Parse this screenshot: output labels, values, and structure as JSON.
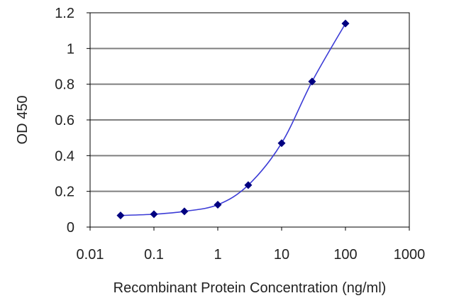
{
  "chart_data": {
    "type": "line",
    "xlabel": "Recombinant Protein Concentration (ng/ml)",
    "ylabel": "OD 450",
    "xscale": "log",
    "xlim": [
      0.01,
      1000
    ],
    "ylim": [
      0,
      1.2
    ],
    "xticks": [
      0.01,
      0.1,
      1,
      10,
      100,
      1000
    ],
    "xtick_labels": [
      "0.01",
      "0.1",
      "1",
      "10",
      "100",
      "1000"
    ],
    "yticks": [
      0,
      0.2,
      0.4,
      0.6,
      0.8,
      1,
      1.2
    ],
    "ytick_labels": [
      "0",
      "0.2",
      "0.4",
      "0.6",
      "0.8",
      "1",
      "1.2"
    ],
    "grid": "horizontal",
    "legend": "none",
    "series": [
      {
        "x": [
          0.03,
          0.1,
          0.3,
          1,
          3,
          10,
          30,
          100
        ],
        "y": [
          0.065,
          0.072,
          0.088,
          0.125,
          0.235,
          0.47,
          0.815,
          1.14
        ],
        "color": "#000080",
        "line_color": "#3b3bd6",
        "marker": "diamond"
      }
    ],
    "colors": {
      "grid": "#7f7f7f",
      "axis": "#000000",
      "plot_background": "#ffffff"
    }
  }
}
